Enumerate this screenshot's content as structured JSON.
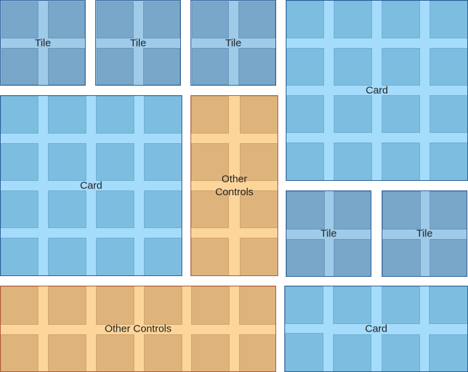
{
  "colors": {
    "tile_fill": "#9fcbe9",
    "tile_cell": "#78a7ca",
    "card_fill": "#a5dcfb",
    "card_cell": "#7dbde0",
    "controls_fill": "#fcd59a",
    "controls_cell": "#dfb47c",
    "blue_border": "#2a5a94",
    "controls_border": "#b0553a"
  },
  "panels": [
    {
      "kind": "tile",
      "label": "Tile"
    },
    {
      "kind": "tile",
      "label": "Tile"
    },
    {
      "kind": "tile",
      "label": "Tile"
    },
    {
      "kind": "card",
      "label": "Card"
    },
    {
      "kind": "card",
      "label": "Card"
    },
    {
      "kind": "controls",
      "label": "Other\nControls"
    },
    {
      "kind": "tile",
      "label": "Tile"
    },
    {
      "kind": "tile",
      "label": "Tile"
    },
    {
      "kind": "controls",
      "label": "Other Controls"
    },
    {
      "kind": "card",
      "label": "Card"
    }
  ]
}
